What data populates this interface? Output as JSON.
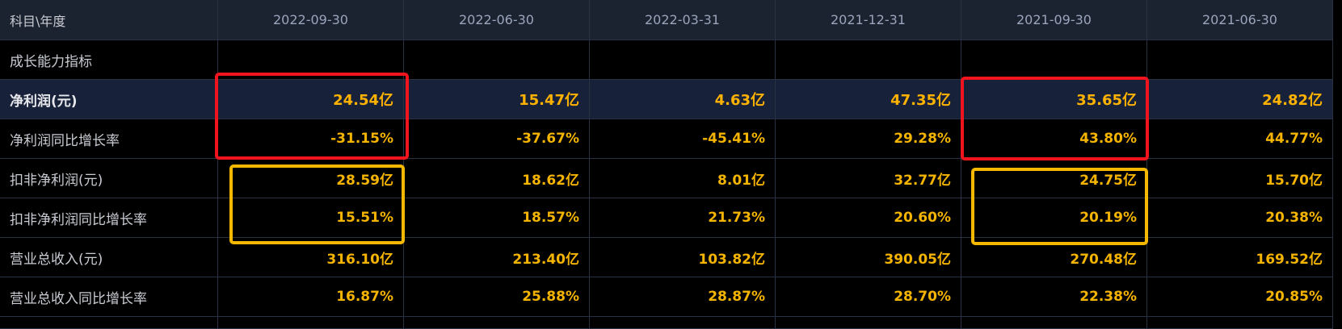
{
  "header": {
    "label": "科目\\年度",
    "columns": [
      "2022-09-30",
      "2022-06-30",
      "2022-03-31",
      "2021-12-31",
      "2021-09-30",
      "2021-06-30"
    ]
  },
  "section": "成长能力指标",
  "rows": [
    {
      "label": "净利润(元)",
      "values": [
        "24.54亿",
        "15.47亿",
        "4.63亿",
        "47.35亿",
        "35.65亿",
        "24.82亿"
      ]
    },
    {
      "label": "净利润同比增长率",
      "values": [
        "-31.15%",
        "-37.67%",
        "-45.41%",
        "29.28%",
        "43.80%",
        "44.77%"
      ]
    },
    {
      "label": "扣非净利润(元)",
      "values": [
        "28.59亿",
        "18.62亿",
        "8.01亿",
        "32.77亿",
        "24.75亿",
        "15.70亿"
      ]
    },
    {
      "label": "扣非净利润同比增长率",
      "values": [
        "15.51%",
        "18.57%",
        "21.73%",
        "20.60%",
        "20.19%",
        "20.38%"
      ]
    },
    {
      "label": "营业总收入(元)",
      "values": [
        "316.10亿",
        "213.40亿",
        "103.82亿",
        "390.05亿",
        "270.48亿",
        "169.52亿"
      ]
    },
    {
      "label": "营业总收入同比增长率",
      "values": [
        "16.87%",
        "25.88%",
        "28.87%",
        "28.70%",
        "22.38%",
        "20.85%"
      ]
    }
  ]
}
